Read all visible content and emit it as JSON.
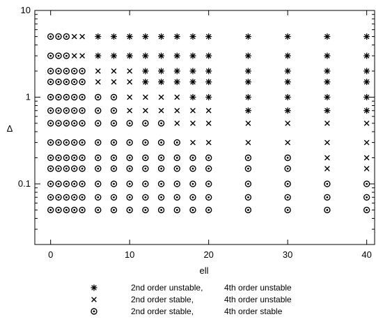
{
  "chart_data": {
    "type": "scatter",
    "title": "",
    "xlabel": "ell",
    "ylabel": "Δ",
    "xlim": [
      -2,
      41
    ],
    "ylim": [
      0.02,
      10
    ],
    "yscale": "log",
    "xticks": [
      0,
      10,
      20,
      30,
      40
    ],
    "xtick_labels": [
      "0",
      "10",
      "20",
      "30",
      "40"
    ],
    "yticks": [
      0.1,
      1,
      10
    ],
    "ytick_labels": [
      "0.1",
      "1",
      "10"
    ],
    "grid": false,
    "legend_position": "bottom",
    "legend": [
      {
        "key": "U",
        "symbol": "asterisk",
        "label_a": "2nd order unstable,",
        "label_b": "4th order unstable"
      },
      {
        "key": "X",
        "symbol": "cross",
        "label_a": "2nd order stable,",
        "label_b": "4th order unstable"
      },
      {
        "key": "O",
        "symbol": "dotted-circle",
        "label_a": "2nd order stable,",
        "label_b": "4th order stable"
      }
    ],
    "x": [
      0,
      1,
      2,
      3,
      4,
      6,
      8,
      10,
      12,
      14,
      16,
      18,
      20,
      25,
      30,
      35,
      40
    ],
    "rows": [
      {
        "delta": 5,
        "states": "OOOXXUUUUUUUUUUUU"
      },
      {
        "delta": 3,
        "states": "OOOXXUUUUUUUUUUUU"
      },
      {
        "delta": 2,
        "states": "OOOOOXXXUUUUUUUUU"
      },
      {
        "delta": 1.5,
        "states": "OOOOOXXXUUUUUUUUU"
      },
      {
        "delta": 1,
        "states": "OOOOOOOXXXXUUUUUU"
      },
      {
        "delta": 0.7,
        "states": "OOOOOOOXXXXXXUUUU"
      },
      {
        "delta": 0.5,
        "states": "OOOOOOOOOOXXXXXXX"
      },
      {
        "delta": 0.3,
        "states": "OOOOOOOOOOOXXXXXX"
      },
      {
        "delta": 0.2,
        "states": "OOOOOOOOOOOOOOOXX"
      },
      {
        "delta": 0.15,
        "states": "OOOOOOOOOOOOOOOXX"
      },
      {
        "delta": 0.1,
        "states": "OOOOOOOOOOOOOOOOO"
      },
      {
        "delta": 0.07,
        "states": "OOOOOOOOOOOOOOOOO"
      },
      {
        "delta": 0.05,
        "states": "OOOOOOOOOOOOOOOOO"
      }
    ]
  }
}
